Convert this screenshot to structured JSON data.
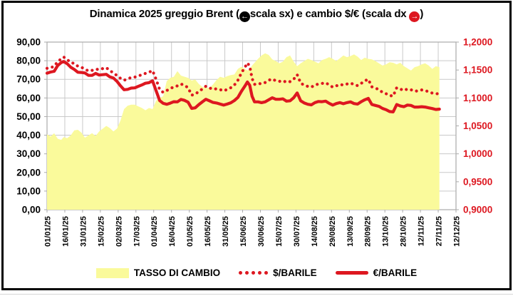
{
  "title": {
    "part1": "Dinamica 2025 greggio Brent (",
    "left_icon_glyph": "←",
    "part2": "scala sx) e cambio $/€ (scala dx ",
    "right_icon_glyph": "→",
    "part3": ")"
  },
  "colors": {
    "red": "#dd1720",
    "yellow": "#fafa9b",
    "grid": "#c9c9c9",
    "plot_border": "#ababab",
    "title_black": "#000000"
  },
  "chart_data": {
    "type": "line",
    "title": "Dinamica 2025 greggio Brent (scala sx) e cambio $/€ (scala dx)",
    "grid": true,
    "legend_position": "bottom",
    "x_tick_labels": [
      "01/01/25",
      "16/01/25",
      "31/01/25",
      "15/02/25",
      "02/03/25",
      "17/03/25",
      "01/04/25",
      "16/04/25",
      "01/05/25",
      "16/05/25",
      "31/05/25",
      "15/06/25",
      "30/06/25",
      "15/07/25",
      "30/07/25",
      "14/08/25",
      "29/08/25",
      "13/09/25",
      "28/09/25",
      "13/10/25",
      "28/10/25",
      "12/11/25",
      "27/11/25",
      "12/12/25"
    ],
    "x_axis_span_days": 345,
    "days_from_01_01_25": [
      0,
      3,
      6,
      9,
      12,
      14,
      17,
      20,
      23,
      26,
      29,
      32,
      35,
      38,
      41,
      44,
      47,
      50,
      53,
      56,
      59,
      62,
      65,
      68,
      71,
      74,
      77,
      80,
      83,
      86,
      89,
      92,
      95,
      98,
      101,
      104,
      107,
      110,
      113,
      116,
      119,
      122,
      125,
      128,
      131,
      134,
      137,
      140,
      143,
      146,
      149,
      152,
      155,
      158,
      161,
      164,
      167,
      169,
      171,
      173,
      175,
      178,
      181,
      184,
      187,
      190,
      193,
      196,
      199,
      202,
      205,
      208,
      211,
      214,
      217,
      220,
      223,
      226,
      229,
      232,
      235,
      238,
      241,
      244,
      247,
      250,
      253,
      256,
      259,
      262,
      265,
      268,
      271,
      274,
      277,
      280,
      283,
      286,
      289,
      292,
      295,
      298,
      301,
      304,
      307,
      310,
      313,
      316,
      319,
      322,
      325,
      328,
      331
    ],
    "left_axis": {
      "range": [
        0,
        90
      ],
      "tick_step": 10,
      "tick_labels": [
        "90,00",
        "80,00",
        "70,00",
        "60,00",
        "50,00",
        "40,00",
        "30,00",
        "20,00",
        "10,00",
        "0,00"
      ],
      "applies_to": [
        "$/BARILE",
        "€/BARILE"
      ]
    },
    "right_axis": {
      "range": [
        0.9,
        1.2
      ],
      "tick_step": 0.05,
      "tick_labels": [
        "1,2000",
        "1,1500",
        "1,1000",
        "1,0500",
        "1,0000",
        "0,9500",
        "0,9000"
      ],
      "applies_to": [
        "TASSO DI CAMBIO"
      ]
    },
    "series": [
      {
        "name": "TASSO DI CAMBIO",
        "type": "area",
        "axis": "right",
        "color": "#fafa9b",
        "values": [
          1.035,
          1.031,
          1.037,
          1.027,
          1.025,
          1.03,
          1.028,
          1.033,
          1.042,
          1.043,
          1.038,
          1.029,
          1.033,
          1.037,
          1.032,
          1.04,
          1.045,
          1.05,
          1.046,
          1.04,
          1.045,
          1.06,
          1.08,
          1.086,
          1.088,
          1.088,
          1.085,
          1.082,
          1.078,
          1.082,
          1.08,
          1.095,
          1.1,
          1.103,
          1.13,
          1.136,
          1.138,
          1.148,
          1.14,
          1.138,
          1.136,
          1.131,
          1.133,
          1.125,
          1.12,
          1.118,
          1.118,
          1.124,
          1.132,
          1.138,
          1.136,
          1.139,
          1.141,
          1.142,
          1.152,
          1.156,
          1.152,
          1.149,
          1.152,
          1.158,
          1.163,
          1.17,
          1.176,
          1.18,
          1.177,
          1.169,
          1.166,
          1.162,
          1.165,
          1.173,
          1.176,
          1.165,
          1.157,
          1.162,
          1.166,
          1.17,
          1.168,
          1.165,
          1.162,
          1.168,
          1.17,
          1.173,
          1.17,
          1.166,
          1.171,
          1.176,
          1.173,
          1.175,
          1.178,
          1.174,
          1.168,
          1.172,
          1.17,
          1.169,
          1.166,
          1.162,
          1.158,
          1.16,
          1.164,
          1.163,
          1.16,
          1.163,
          1.157,
          1.153,
          1.149,
          1.155,
          1.157,
          1.16,
          1.162,
          1.158,
          1.152,
          1.157,
          1.155
        ]
      },
      {
        "name": "$/BARILE",
        "type": "line",
        "style": "dotted",
        "axis": "left",
        "color": "#dd1720",
        "values": [
          75.9,
          76.2,
          77.0,
          79.5,
          81.0,
          82.0,
          80.6,
          79.0,
          78.5,
          77.0,
          76.5,
          75.5,
          74.5,
          74.8,
          75.5,
          75.2,
          75.8,
          76.3,
          74.6,
          73.5,
          72.0,
          70.5,
          69.5,
          70.2,
          71.0,
          71.2,
          71.8,
          72.5,
          73.2,
          73.8,
          74.7,
          70.0,
          64.5,
          63.0,
          64.0,
          65.0,
          66.0,
          66.5,
          67.5,
          66.8,
          65.5,
          61.5,
          62.0,
          63.5,
          64.8,
          66.3,
          65.4,
          64.7,
          64.9,
          64.5,
          63.8,
          64.6,
          65.5,
          66.9,
          69.5,
          73.5,
          76.5,
          78.8,
          77.0,
          70.5,
          67.3,
          67.8,
          67.6,
          68.3,
          69.5,
          70.2,
          69.2,
          68.9,
          69.3,
          68.4,
          68.8,
          70.0,
          72.5,
          68.0,
          66.8,
          66.2,
          65.8,
          67.0,
          67.5,
          67.8,
          68.2,
          67.0,
          65.8,
          66.5,
          67.3,
          66.9,
          67.5,
          68.0,
          67.2,
          66.6,
          67.8,
          69.2,
          70.0,
          66.0,
          65.3,
          64.5,
          63.0,
          62.3,
          61.3,
          61.0,
          65.5,
          64.8,
          64.0,
          64.8,
          64.4,
          63.6,
          63.8,
          64.3,
          64.0,
          63.3,
          62.6,
          62.2,
          62.4
        ]
      },
      {
        "name": "€/BARILE",
        "type": "line",
        "style": "solid",
        "axis": "left",
        "color": "#dd1720",
        "values": [
          73.3,
          73.9,
          74.3,
          77.4,
          79.0,
          79.6,
          78.4,
          76.5,
          75.3,
          73.8,
          73.7,
          73.4,
          72.1,
          72.1,
          73.2,
          72.3,
          72.5,
          72.7,
          71.3,
          70.7,
          68.9,
          66.5,
          64.4,
          64.6,
          65.3,
          65.4,
          66.2,
          67.0,
          67.9,
          68.2,
          69.2,
          63.9,
          58.6,
          57.1,
          56.6,
          57.2,
          58.0,
          57.9,
          59.2,
          58.7,
          57.7,
          54.4,
          54.7,
          56.4,
          57.9,
          59.3,
          58.5,
          57.6,
          57.3,
          56.7,
          56.2,
          56.7,
          57.4,
          58.6,
          60.3,
          63.6,
          66.4,
          68.6,
          66.8,
          60.9,
          57.9,
          57.9,
          57.5,
          57.9,
          59.0,
          60.1,
          59.3,
          59.3,
          59.5,
          58.3,
          58.5,
          60.1,
          62.7,
          58.5,
          57.3,
          56.6,
          56.3,
          57.5,
          58.1,
          58.0,
          58.3,
          57.1,
          56.2,
          57.0,
          57.5,
          56.9,
          57.5,
          57.9,
          57.0,
          56.7,
          58.0,
          59.0,
          59.8,
          56.5,
          56.0,
          55.5,
          54.4,
          53.7,
          52.7,
          52.5,
          56.5,
          55.7,
          55.3,
          56.2,
          56.0,
          55.1,
          55.1,
          55.3,
          55.1,
          54.7,
          54.3,
          53.8,
          54.0
        ]
      }
    ]
  }
}
